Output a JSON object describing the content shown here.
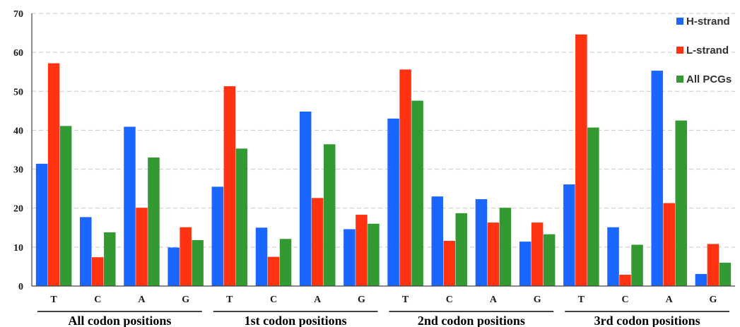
{
  "chart_data": {
    "type": "bar",
    "ylim": [
      0,
      70
    ],
    "yticks": [
      0,
      10,
      20,
      30,
      40,
      50,
      60,
      70
    ],
    "grid": true,
    "legend_position": "top-right",
    "groups": [
      {
        "label": "All codon positions",
        "categories": [
          "T",
          "C",
          "A",
          "G"
        ]
      },
      {
        "label": "1st codon positions",
        "categories": [
          "T",
          "C",
          "A",
          "G"
        ]
      },
      {
        "label": "2nd codon positions",
        "categories": [
          "T",
          "C",
          "A",
          "G"
        ]
      },
      {
        "label": "3rd codon positions",
        "categories": [
          "T",
          "C",
          "A",
          "G"
        ]
      }
    ],
    "categories": [
      "T",
      "C",
      "A",
      "G",
      "T",
      "C",
      "A",
      "G",
      "T",
      "C",
      "A",
      "G",
      "T",
      "C",
      "A",
      "G"
    ],
    "series": [
      {
        "name": "H-strand",
        "color": "#1a66ff",
        "values": [
          31.4,
          17.7,
          40.9,
          9.9,
          25.5,
          15.0,
          44.8,
          14.6,
          43.0,
          23.0,
          22.3,
          11.4,
          26.1,
          15.1,
          55.3,
          3.1
        ]
      },
      {
        "name": "L-strand",
        "color": "#ff3311",
        "values": [
          57.2,
          7.4,
          20.1,
          15.1,
          51.3,
          7.5,
          22.6,
          18.3,
          55.6,
          11.6,
          16.3,
          16.3,
          64.6,
          2.9,
          21.3,
          10.8
        ]
      },
      {
        "name": "All PCGs",
        "color": "#339933",
        "values": [
          41.1,
          13.8,
          33.0,
          11.8,
          35.3,
          12.1,
          36.4,
          16.0,
          47.6,
          18.7,
          20.1,
          13.3,
          40.7,
          10.6,
          42.5,
          6.0
        ]
      }
    ]
  }
}
